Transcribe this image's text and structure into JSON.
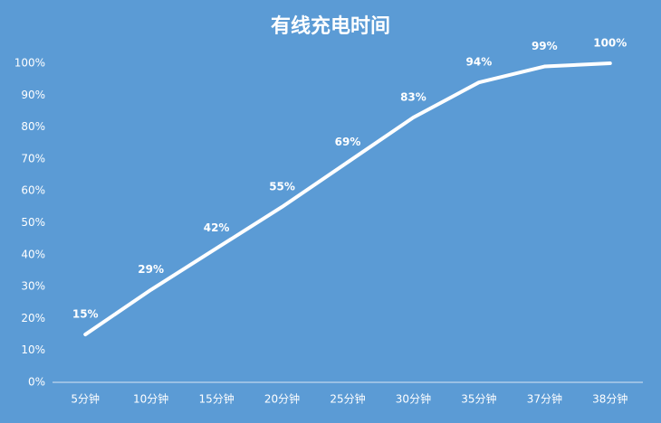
{
  "chart_data": {
    "type": "line",
    "title": "有线充电时间",
    "categories": [
      "5分钟",
      "10分钟",
      "15分钟",
      "20分钟",
      "25分钟",
      "30分钟",
      "35分钟",
      "37分钟",
      "38分钟"
    ],
    "values": [
      15,
      29,
      42,
      55,
      69,
      83,
      94,
      99,
      100
    ],
    "value_labels": [
      "15%",
      "29%",
      "42%",
      "55%",
      "69%",
      "83%",
      "94%",
      "99%",
      "100%"
    ],
    "color": "#ffffff",
    "ylim": [
      0,
      100
    ],
    "yticks": [
      {
        "value": 0,
        "label": "0%"
      },
      {
        "value": 10,
        "label": "10%"
      },
      {
        "value": 20,
        "label": "20%"
      },
      {
        "value": 30,
        "label": "30%"
      },
      {
        "value": 40,
        "label": "40%"
      },
      {
        "value": 50,
        "label": "50%"
      },
      {
        "value": 60,
        "label": "60%"
      },
      {
        "value": 70,
        "label": "70%"
      },
      {
        "value": 80,
        "label": "80%"
      },
      {
        "value": 90,
        "label": "90%"
      },
      {
        "value": 100,
        "label": "100%"
      }
    ],
    "drop_lines": true
  }
}
